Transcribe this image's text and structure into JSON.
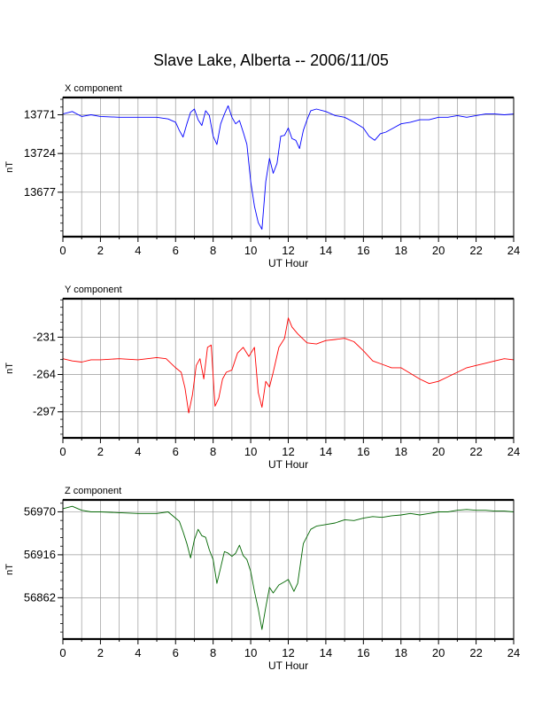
{
  "title": "Slave Lake, Alberta -- 2006/11/05",
  "chart_data": [
    {
      "type": "line",
      "panel_label": "X component",
      "xlabel": "UT Hour",
      "ylabel": "nT",
      "xlim": [
        0,
        24
      ],
      "ylim": [
        13623,
        13792
      ],
      "x_ticks": [
        "0",
        "2",
        "4",
        "6",
        "8",
        "10",
        "12",
        "14",
        "16",
        "18",
        "20",
        "22",
        "24"
      ],
      "y_ticks": [
        13771,
        13724,
        13677
      ],
      "y_tick_labels": [
        "13771",
        "13724",
        "13677"
      ],
      "grid": true,
      "color": "#0000ff",
      "series": [
        {
          "x": [
            0,
            0.5,
            1,
            1.5,
            2,
            3,
            4,
            5,
            5.6,
            6,
            6.2,
            6.4,
            6.6,
            6.8,
            7,
            7.2,
            7.4,
            7.6,
            7.8,
            8,
            8.2,
            8.4,
            8.6,
            8.8,
            9,
            9.2,
            9.4,
            9.6,
            9.8,
            10,
            10.2,
            10.4,
            10.6,
            10.8,
            11,
            11.2,
            11.4,
            11.6,
            11.8,
            12,
            12.2,
            12.4,
            12.6,
            12.8,
            13,
            13.2,
            13.5,
            14,
            14.5,
            15,
            15.5,
            16,
            16.3,
            16.6,
            16.9,
            17.2,
            17.6,
            18,
            18.5,
            19,
            19.5,
            20,
            20.5,
            21,
            21.5,
            22,
            22.5,
            23,
            23.5,
            24
          ],
          "values": [
            13772,
            13775,
            13769,
            13771,
            13769,
            13768,
            13768,
            13768,
            13766,
            13762,
            13752,
            13744,
            13760,
            13774,
            13778,
            13765,
            13758,
            13776,
            13770,
            13745,
            13735,
            13760,
            13772,
            13782,
            13768,
            13760,
            13764,
            13750,
            13735,
            13690,
            13660,
            13640,
            13632,
            13690,
            13718,
            13700,
            13712,
            13745,
            13746,
            13755,
            13742,
            13740,
            13730,
            13752,
            13765,
            13776,
            13778,
            13775,
            13770,
            13768,
            13762,
            13755,
            13745,
            13740,
            13748,
            13750,
            13755,
            13760,
            13762,
            13765,
            13765,
            13768,
            13768,
            13770,
            13768,
            13770,
            13772,
            13772,
            13771,
            13772
          ]
        }
      ]
    },
    {
      "type": "line",
      "panel_label": "Y component",
      "xlabel": "UT Hour",
      "ylabel": "nT",
      "xlim": [
        0,
        24
      ],
      "ylim": [
        -320,
        -197
      ],
      "x_ticks": [
        "0",
        "2",
        "4",
        "6",
        "8",
        "10",
        "12",
        "14",
        "16",
        "18",
        "20",
        "22",
        "24"
      ],
      "y_ticks": [
        -231,
        -264,
        -297
      ],
      "y_tick_labels": [
        "-231",
        "-264",
        "-297"
      ],
      "grid": true,
      "color": "#ff0000",
      "series": [
        {
          "x": [
            0,
            0.5,
            1,
            1.5,
            2,
            3,
            4,
            5,
            5.5,
            6,
            6.3,
            6.5,
            6.7,
            6.9,
            7.1,
            7.3,
            7.5,
            7.7,
            7.9,
            8.1,
            8.3,
            8.5,
            8.7,
            9,
            9.3,
            9.6,
            9.9,
            10.2,
            10.4,
            10.6,
            10.8,
            11,
            11.2,
            11.5,
            11.8,
            12,
            12.2,
            12.5,
            13,
            13.5,
            14,
            14.5,
            15,
            15.5,
            16,
            16.5,
            17,
            17.5,
            18,
            18.5,
            19,
            19.5,
            20,
            20.5,
            21,
            21.5,
            22,
            22.5,
            23,
            23.5,
            24
          ],
          "values": [
            -250,
            -252,
            -253,
            -251,
            -251,
            -250,
            -251,
            -249,
            -250,
            -258,
            -262,
            -276,
            -298,
            -282,
            -256,
            -250,
            -268,
            -240,
            -238,
            -292,
            -285,
            -268,
            -262,
            -260,
            -245,
            -240,
            -248,
            -240,
            -280,
            -293,
            -270,
            -275,
            -262,
            -240,
            -232,
            -214,
            -222,
            -228,
            -236,
            -237,
            -234,
            -233,
            -232,
            -235,
            -243,
            -252,
            -255,
            -258,
            -258,
            -263,
            -268,
            -272,
            -270,
            -266,
            -262,
            -258,
            -256,
            -254,
            -252,
            -250,
            -251
          ]
        }
      ]
    },
    {
      "type": "line",
      "panel_label": "Z component",
      "xlabel": "UT Hour",
      "ylabel": "nT",
      "xlim": [
        0,
        24
      ],
      "ylim": [
        56810,
        56985
      ],
      "x_ticks": [
        "0",
        "2",
        "4",
        "6",
        "8",
        "10",
        "12",
        "14",
        "16",
        "18",
        "20",
        "22",
        "24"
      ],
      "y_ticks": [
        56970,
        56916,
        56862
      ],
      "y_tick_labels": [
        "56970",
        "56916",
        "56862"
      ],
      "grid": true,
      "color": "#006600",
      "series": [
        {
          "x": [
            0,
            0.5,
            1,
            1.5,
            2,
            3,
            4,
            5,
            5.6,
            6,
            6.2,
            6.4,
            6.6,
            6.8,
            7,
            7.2,
            7.4,
            7.6,
            7.8,
            8,
            8.2,
            8.4,
            8.6,
            8.8,
            9,
            9.2,
            9.4,
            9.6,
            9.8,
            10,
            10.2,
            10.4,
            10.6,
            10.8,
            11,
            11.2,
            11.5,
            11.8,
            12,
            12.3,
            12.5,
            12.8,
            13.2,
            13.5,
            14,
            14.5,
            15,
            15.5,
            16,
            16.5,
            17,
            17.5,
            18,
            18.5,
            19,
            19.5,
            20,
            20.5,
            21,
            21.5,
            22,
            22.5,
            23,
            23.5,
            24
          ],
          "values": [
            56974,
            56977,
            56972,
            56970,
            56970,
            56969,
            56968,
            56968,
            56970,
            56962,
            56958,
            56945,
            56930,
            56912,
            56935,
            56948,
            56940,
            56938,
            56922,
            56910,
            56880,
            56900,
            56920,
            56918,
            56914,
            56918,
            56928,
            56915,
            56910,
            56895,
            56870,
            56848,
            56822,
            56850,
            56875,
            56868,
            56878,
            56882,
            56885,
            56870,
            56880,
            56930,
            56948,
            56952,
            56954,
            56956,
            56960,
            56959,
            56962,
            56964,
            56963,
            56965,
            56966,
            56968,
            56966,
            56968,
            56970,
            56970,
            56972,
            56973,
            56972,
            56972,
            56971,
            56971,
            56970
          ]
        }
      ]
    }
  ]
}
